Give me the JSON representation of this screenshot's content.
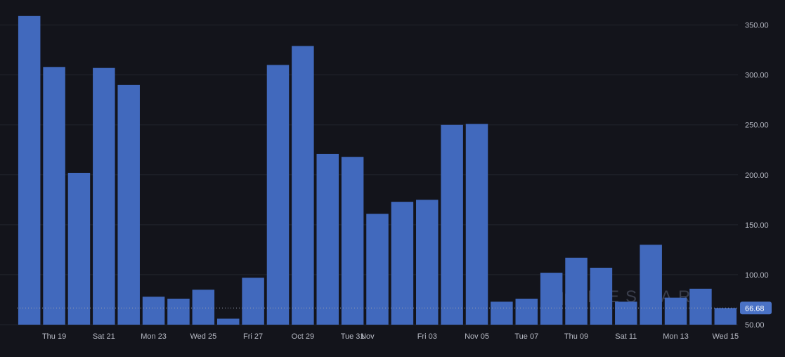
{
  "chart_data": {
    "type": "bar",
    "title": "",
    "xlabel": "",
    "ylabel": "",
    "ylim": [
      50,
      368
    ],
    "y_ticks": [
      "350.00",
      "300.00",
      "250.00",
      "200.00",
      "150.00",
      "100.00",
      "50.00"
    ],
    "y_tick_values": [
      350,
      300,
      250,
      200,
      150,
      100,
      50
    ],
    "grid": true,
    "bar_color": "#4169bd",
    "last_value_label": "66.68",
    "last_value": 66.68,
    "last_label_color": "#4a72c6",
    "x_tick_labels": [
      {
        "label": "Thu 19",
        "index": 1.5
      },
      {
        "label": "Sat 21",
        "index": 3.5
      },
      {
        "label": "Mon 23",
        "index": 5.5
      },
      {
        "label": "Wed 25",
        "index": 7.5
      },
      {
        "label": "Fri 27",
        "index": 9.5
      },
      {
        "label": "Oct 29",
        "index": 11.5
      },
      {
        "label": "Tue 31",
        "index": 13.5
      },
      {
        "label": "Nov",
        "index": 14.1
      },
      {
        "label": "Fri 03",
        "index": 16.5
      },
      {
        "label": "Nov 05",
        "index": 18.5
      },
      {
        "label": "Tue 07",
        "index": 20.5
      },
      {
        "label": "Thu 09",
        "index": 22.5
      },
      {
        "label": "Sat 11",
        "index": 24.5
      },
      {
        "label": "Mon 13",
        "index": 26.5
      },
      {
        "label": "Wed 15",
        "index": 28.5
      }
    ],
    "values": [
      359,
      308,
      202,
      307,
      290,
      78,
      76,
      85,
      56,
      97,
      310,
      329,
      221,
      218,
      161,
      173,
      175,
      250,
      251,
      73,
      76,
      102,
      117,
      107,
      73,
      130,
      77,
      86,
      66.68
    ],
    "watermark": "MESSARI"
  }
}
